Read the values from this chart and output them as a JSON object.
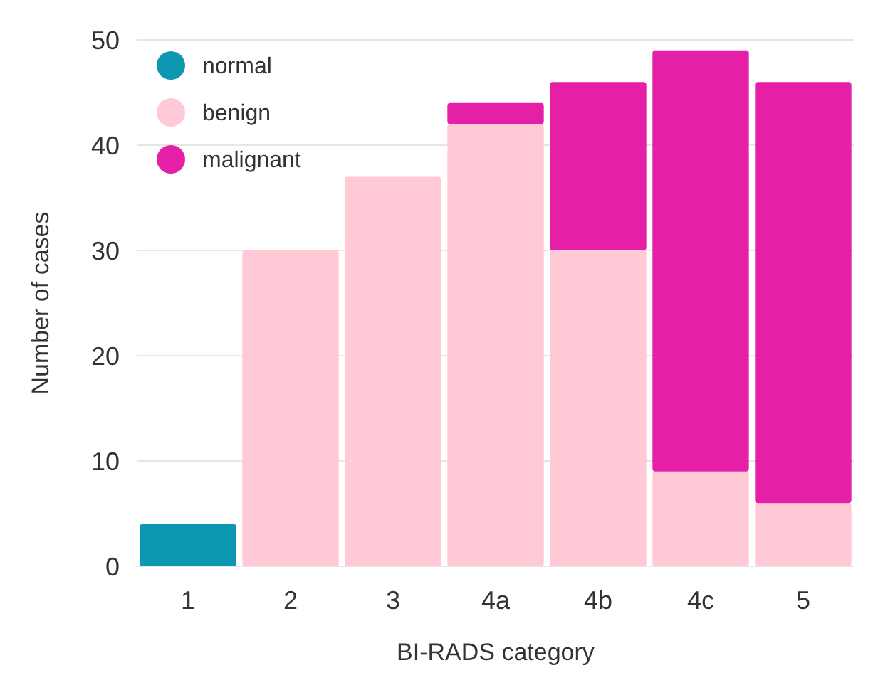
{
  "chart_data": {
    "type": "bar",
    "stacked": true,
    "xlabel": "BI-RADS category",
    "ylabel": "Number of cases",
    "categories": [
      "1",
      "2",
      "3",
      "4a",
      "4b",
      "4c",
      "5"
    ],
    "series": [
      {
        "name": "normal",
        "color": "#0e97b0",
        "values": [
          4,
          null,
          null,
          null,
          null,
          null,
          null
        ]
      },
      {
        "name": "benign",
        "color": "#ffc9d6",
        "values": [
          null,
          30,
          37,
          42,
          30,
          9,
          6
        ]
      },
      {
        "name": "malignant",
        "color": "#e620a6",
        "values": [
          null,
          null,
          null,
          2,
          16,
          40,
          40
        ]
      }
    ],
    "ylim": [
      0,
      50
    ],
    "yticks": [
      0,
      10,
      20,
      30,
      40,
      50
    ],
    "grid": "y",
    "legend": "top left"
  }
}
